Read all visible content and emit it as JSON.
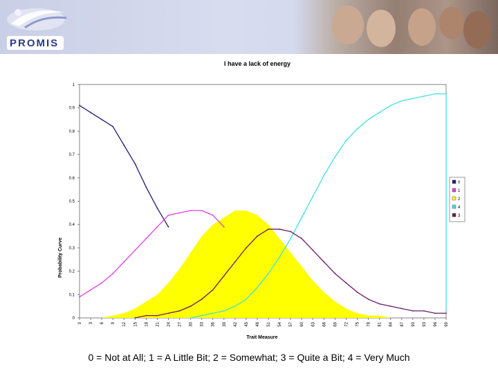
{
  "branding": {
    "logo_text": "PROMIS"
  },
  "caption": "0 = Not at All; 1 = A Little Bit; 2 = Somewhat; 3 = Quite a Bit; 4 = Very Much",
  "colors": {
    "s0": "#1c1c6e",
    "s1": "#e040e0",
    "s2": "#ffff00",
    "s3": "#6a1b6a",
    "s4": "#40e0e0",
    "grid": "#ffffff",
    "border": "#808080"
  },
  "chart_data": {
    "type": "line",
    "title": "I have a lack of energy",
    "xlabel": "Trait Measure",
    "ylabel": "Probability Curve",
    "ylim": [
      0,
      1
    ],
    "yticks": [
      "0",
      "0.1",
      "0.2",
      "0.3",
      "0.4",
      "0.5",
      "0.6",
      "0.7",
      "0.8",
      "0.9",
      "1"
    ],
    "xticks": [
      "0",
      "3",
      "6",
      "9",
      "12",
      "15",
      "18",
      "21",
      "24",
      "27",
      "30",
      "33",
      "36",
      "39",
      "42",
      "45",
      "48",
      "51",
      "54",
      "57",
      "60",
      "63",
      "66",
      "69",
      "72",
      "75",
      "78",
      "81",
      "84",
      "87",
      "90",
      "93",
      "96",
      "99"
    ],
    "x": [
      0,
      3,
      6,
      9,
      12,
      15,
      18,
      21,
      24,
      27,
      30,
      33,
      36,
      39,
      42,
      45,
      48,
      51,
      54,
      57,
      60,
      63,
      66,
      69,
      72,
      75,
      78,
      81,
      84,
      87,
      90,
      93,
      96,
      99
    ],
    "legend": [
      "0",
      "1",
      "2",
      "4",
      "3"
    ],
    "legend_position": "right",
    "series": [
      {
        "name": "0",
        "values": [
          0.91,
          0.88,
          0.85,
          0.82,
          0.74,
          0.66,
          0.56,
          0.47,
          0.39,
          null,
          null,
          null,
          null,
          null,
          null,
          null,
          null,
          null,
          null,
          null,
          null,
          null,
          null,
          null,
          null,
          null,
          null,
          null,
          null,
          null,
          null,
          null,
          null,
          null
        ]
      },
      {
        "name": "1",
        "values": [
          0.09,
          0.12,
          0.15,
          0.19,
          0.24,
          0.29,
          0.34,
          0.39,
          0.44,
          0.45,
          0.46,
          0.46,
          0.44,
          0.39,
          null,
          null,
          null,
          null,
          null,
          null,
          null,
          null,
          null,
          null,
          null,
          null,
          null,
          null,
          null,
          null,
          null,
          null,
          null,
          null
        ]
      },
      {
        "name": "2",
        "values": [
          0,
          0,
          0,
          0.01,
          0.02,
          0.04,
          0.07,
          0.1,
          0.15,
          0.21,
          0.28,
          0.35,
          0.4,
          0.43,
          0.46,
          0.46,
          0.44,
          0.4,
          0.34,
          0.28,
          0.22,
          0.16,
          0.11,
          0.07,
          0.04,
          0.02,
          0.01,
          0.01,
          0,
          0,
          0,
          0,
          0,
          0
        ]
      },
      {
        "name": "4",
        "values": [
          null,
          null,
          null,
          null,
          null,
          null,
          null,
          null,
          null,
          null,
          0,
          0.01,
          0.02,
          0.03,
          0.05,
          0.08,
          0.13,
          0.19,
          0.26,
          0.34,
          0.43,
          0.52,
          0.61,
          0.69,
          0.76,
          0.81,
          0.85,
          0.88,
          0.91,
          0.93,
          0.94,
          0.95,
          0.96,
          0.96
        ]
      },
      {
        "name": "3",
        "values": [
          null,
          null,
          null,
          null,
          null,
          0,
          0.01,
          0.01,
          0.02,
          0.03,
          0.05,
          0.08,
          0.12,
          0.18,
          0.24,
          0.3,
          0.35,
          0.38,
          0.38,
          0.37,
          0.34,
          0.29,
          0.24,
          0.19,
          0.15,
          0.11,
          0.08,
          0.06,
          0.05,
          0.04,
          0.03,
          0.03,
          0.02,
          0.02
        ]
      }
    ]
  }
}
